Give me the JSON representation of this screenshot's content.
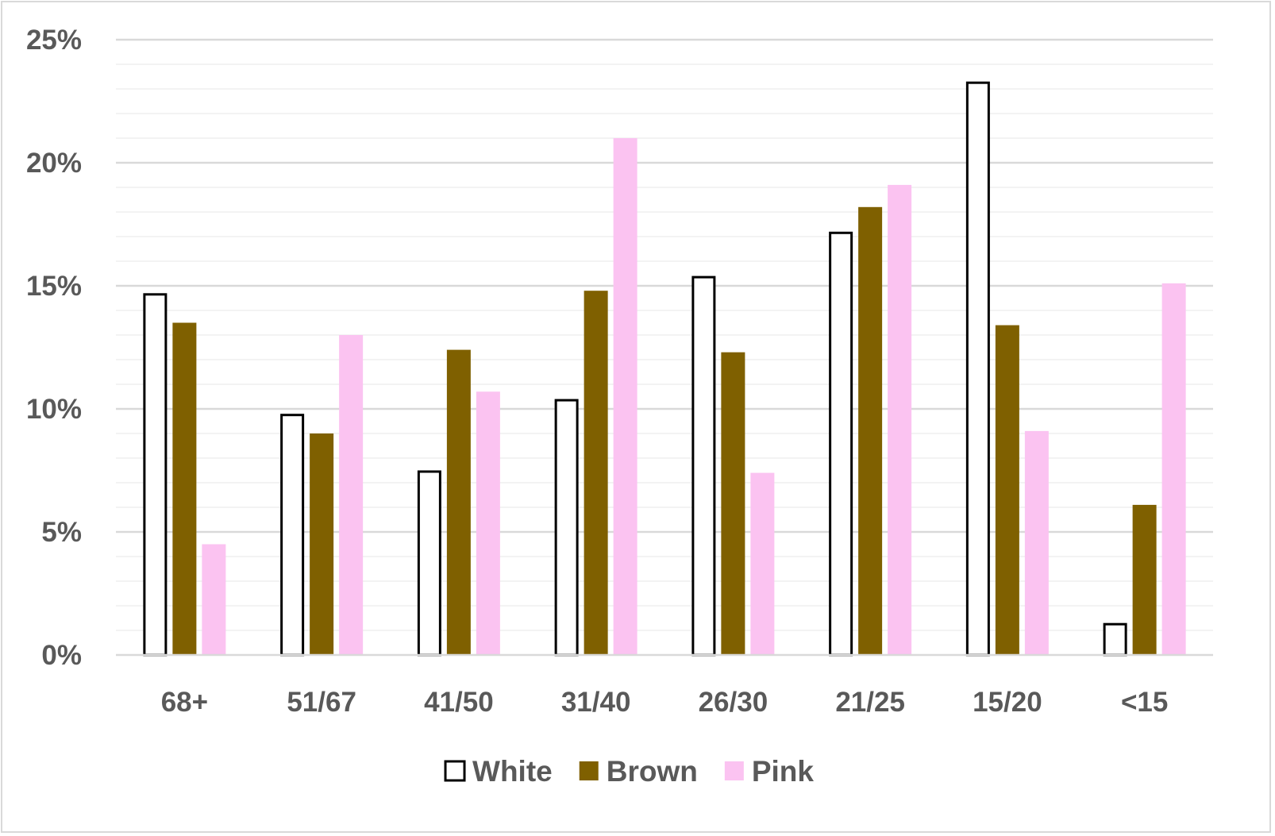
{
  "chart_data": {
    "type": "bar",
    "title": "",
    "xlabel": "",
    "ylabel": "",
    "categories": [
      "68+",
      "51/67",
      "41/50",
      "31/40",
      "26/30",
      "21/25",
      "15/20",
      "<15"
    ],
    "series": [
      {
        "name": "White",
        "values": [
          14.7,
          9.8,
          7.5,
          10.4,
          15.4,
          17.2,
          23.3,
          1.3
        ],
        "fill": "#ffffff",
        "stroke": "#000000"
      },
      {
        "name": "Brown",
        "values": [
          13.5,
          9.0,
          12.4,
          14.8,
          12.3,
          18.2,
          13.4,
          6.1
        ],
        "fill": "#7f6000",
        "stroke": "none"
      },
      {
        "name": "Pink",
        "values": [
          4.5,
          13.0,
          10.7,
          21.0,
          7.4,
          19.1,
          9.1,
          15.1
        ],
        "fill": "#fbc3f1",
        "stroke": "none"
      }
    ],
    "ylim": [
      0,
      25
    ],
    "y_major_ticks": [
      0,
      5,
      10,
      15,
      20,
      25
    ],
    "y_tick_labels": [
      "0%",
      "5%",
      "10%",
      "15%",
      "20%",
      "25%"
    ],
    "y_minor_step": 1,
    "grid": true,
    "legend_position": "bottom",
    "colors": {
      "major_grid": "#d9d9d9",
      "minor_grid": "#efefef",
      "axis_line": "#d9d9d9",
      "text": "#595959",
      "border": "#d9d9d9"
    }
  }
}
